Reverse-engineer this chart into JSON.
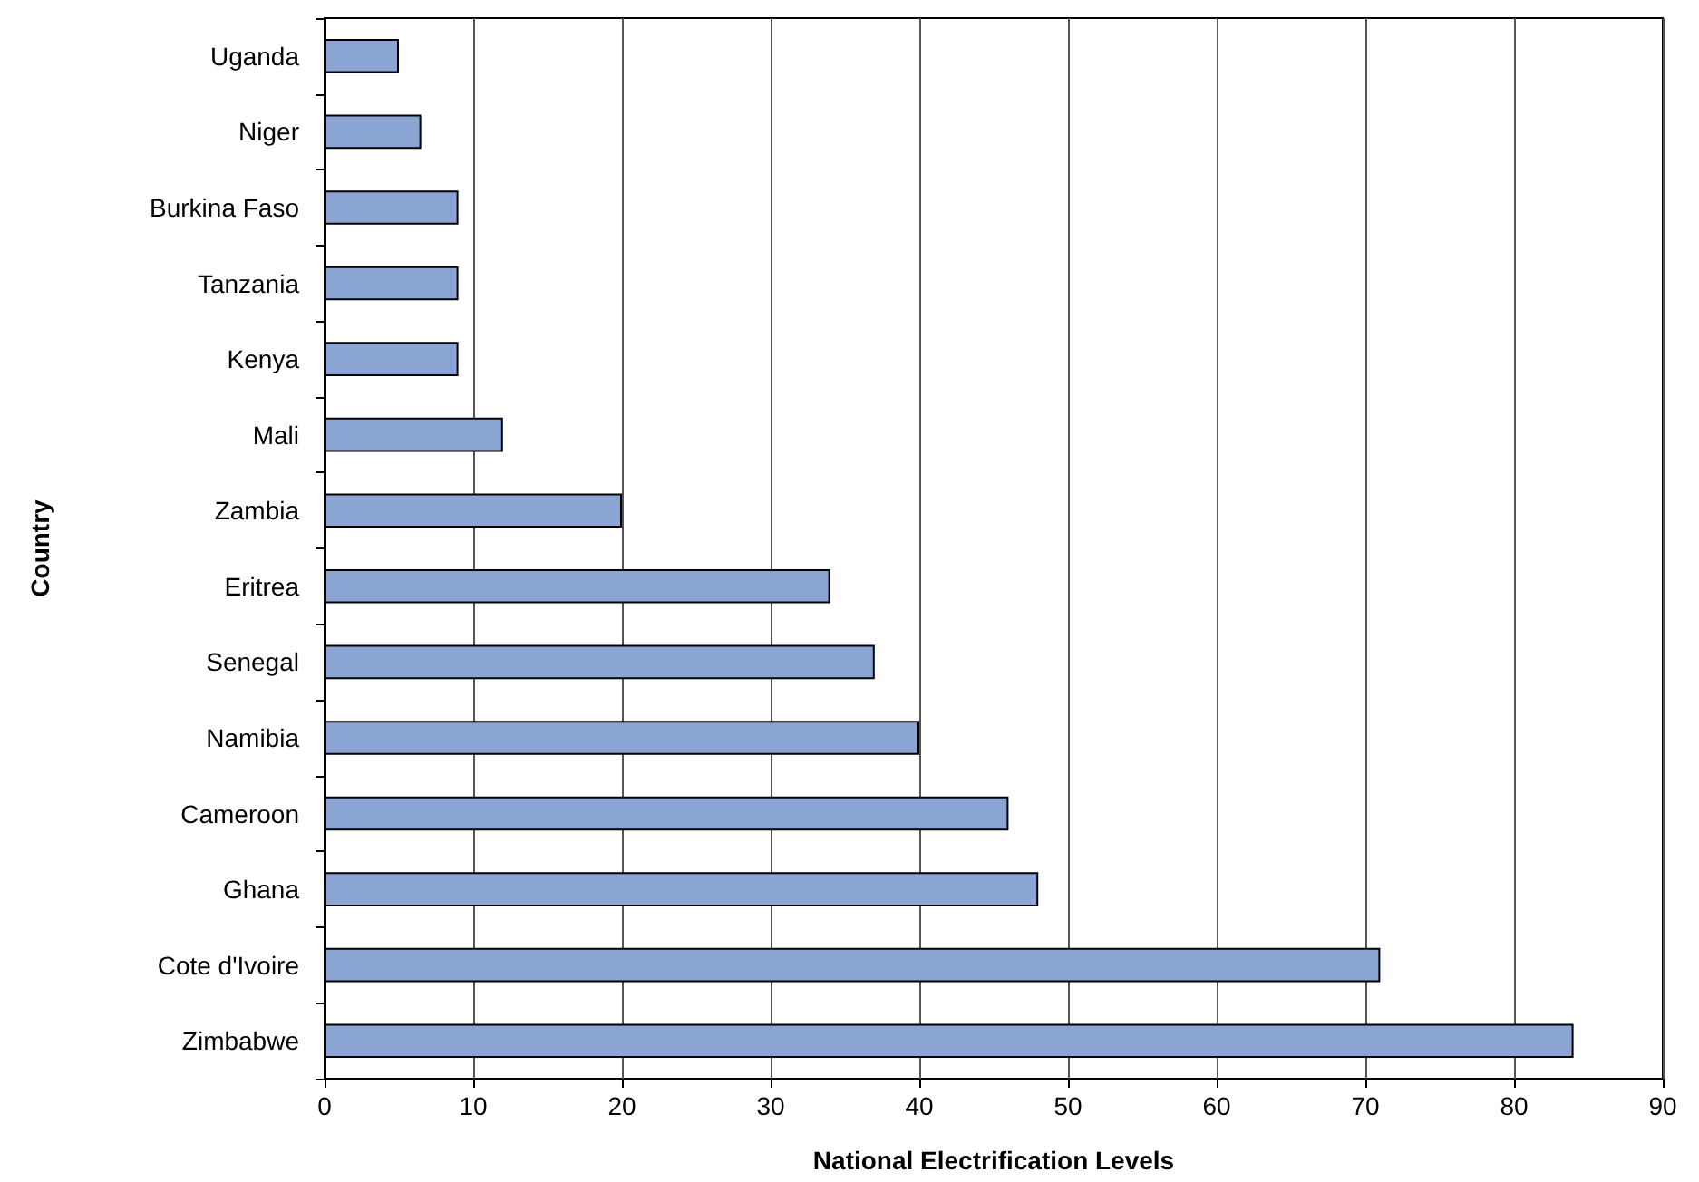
{
  "chart_data": {
    "type": "bar",
    "orientation": "horizontal",
    "xlabel": "National Electrification Levels",
    "ylabel": "Country",
    "categories": [
      "Uganda",
      "Niger",
      "Burkina Faso",
      "Tanzania",
      "Kenya",
      "Mali",
      "Zambia",
      "Eritrea",
      "Senegal",
      "Namibia",
      "Cameroon",
      "Ghana",
      "Cote d'Ivoire",
      "Zimbabwe"
    ],
    "values": [
      5,
      6.5,
      9,
      9,
      9,
      12,
      20,
      34,
      37,
      40,
      46,
      48,
      71,
      84
    ],
    "color": "#8aa5d3",
    "xlim": [
      0,
      90
    ],
    "xticks": [
      0,
      10,
      20,
      30,
      40,
      50,
      60,
      70,
      80,
      90
    ],
    "grid": "x"
  }
}
